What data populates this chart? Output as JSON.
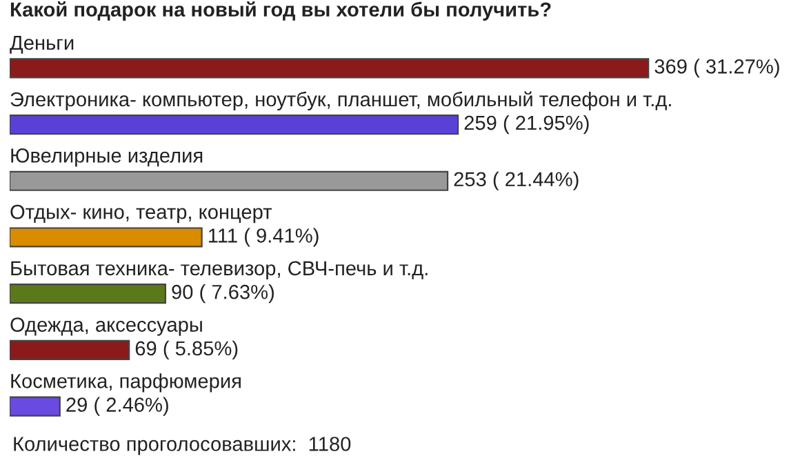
{
  "chart_data": {
    "type": "bar",
    "orientation": "horizontal",
    "title": "Какой подарок на новый год вы хотели бы получить?",
    "categories": [
      "Деньги",
      "Электроника- компьютер, ноутбук, планшет, мобильный телефон и т.д.",
      "Ювелирные изделия",
      "Отдых- кино, театр, концерт",
      "Бытовая техника- телевизор, СВЧ-печь и т.д.",
      "Одежда, аксессуары",
      "Косметика, парфюмерия"
    ],
    "values": [
      369,
      259,
      253,
      111,
      90,
      69,
      29
    ],
    "value_labels": [
      "369 ( 31.27%)",
      "259 ( 21.95%)",
      "253 ( 21.44%)",
      "111 ( 9.41%)",
      "90 ( 7.63%)",
      "69 ( 5.85%)",
      "29 ( 2.46%)"
    ],
    "colors": [
      "#8b1a1a",
      "#5b40d8",
      "#999999",
      "#d98c00",
      "#5a7a1a",
      "#8b1a1a",
      "#6a4ae0"
    ],
    "annotations": [
      "Количество проголосовавших:  1180"
    ]
  }
}
